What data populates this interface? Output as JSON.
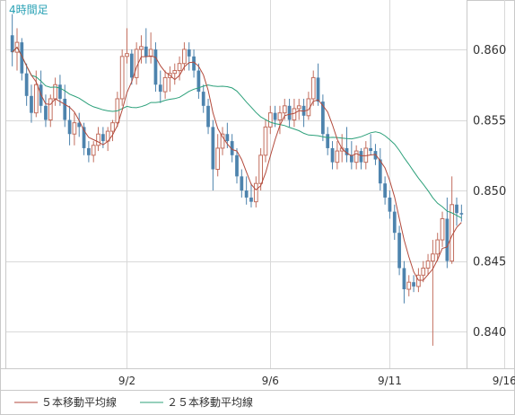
{
  "chart_data": {
    "type": "candlestick",
    "period_label": "4時間足",
    "y_ticks": [
      "0.860",
      "0.855",
      "0.850",
      "0.845",
      "0.840"
    ],
    "y_tick_values": [
      0.86,
      0.855,
      0.85,
      0.845,
      0.84
    ],
    "ylim": [
      0.8374,
      0.8635
    ],
    "x_ticks": [
      {
        "label": "9/2",
        "index": 24
      },
      {
        "label": "9/6",
        "index": 54
      },
      {
        "label": "9/11",
        "index": 79
      },
      {
        "label": "9/16",
        "index": 103
      }
    ],
    "grid": true,
    "colors": {
      "up_candle": "#c26e5e",
      "down_candle": "#4d83ad",
      "ma5": "#b34a3c",
      "ma25": "#2ca07a",
      "grid": "#d9d9d9",
      "period_label": "#26a0b4"
    },
    "legend": [
      {
        "label": "５本移動平均線",
        "color": "#b34a3c"
      },
      {
        "label": "２５本移動平均線",
        "color": "#2ca07a"
      }
    ],
    "ohlc": [
      [
        0.861,
        0.8625,
        0.8588,
        0.8598
      ],
      [
        0.8598,
        0.8615,
        0.8585,
        0.8605
      ],
      [
        0.8605,
        0.8608,
        0.8578,
        0.8583
      ],
      [
        0.8583,
        0.859,
        0.856,
        0.8567
      ],
      [
        0.8567,
        0.8575,
        0.8548,
        0.8555
      ],
      [
        0.8555,
        0.8585,
        0.8552,
        0.8575
      ],
      [
        0.8575,
        0.8585,
        0.8555,
        0.856
      ],
      [
        0.856,
        0.8568,
        0.8545,
        0.855
      ],
      [
        0.855,
        0.8568,
        0.8545,
        0.8565
      ],
      [
        0.8565,
        0.858,
        0.856,
        0.8575
      ],
      [
        0.8575,
        0.8582,
        0.856,
        0.8565
      ],
      [
        0.8565,
        0.8575,
        0.8545,
        0.855
      ],
      [
        0.855,
        0.856,
        0.8532,
        0.854
      ],
      [
        0.854,
        0.8555,
        0.8532,
        0.8548
      ],
      [
        0.8548,
        0.8555,
        0.8538,
        0.8545
      ],
      [
        0.8545,
        0.8548,
        0.8525,
        0.853
      ],
      [
        0.853,
        0.8535,
        0.852,
        0.8525
      ],
      [
        0.8525,
        0.8535,
        0.852,
        0.8532
      ],
      [
        0.8532,
        0.8545,
        0.8528,
        0.854
      ],
      [
        0.854,
        0.8545,
        0.853,
        0.8535
      ],
      [
        0.8535,
        0.8545,
        0.8528,
        0.8542
      ],
      [
        0.8542,
        0.855,
        0.8535,
        0.8548
      ],
      [
        0.8548,
        0.857,
        0.8545,
        0.8565
      ],
      [
        0.8565,
        0.86,
        0.856,
        0.8595
      ],
      [
        0.8595,
        0.8615,
        0.859,
        0.8597
      ],
      [
        0.8597,
        0.86,
        0.8575,
        0.858
      ],
      [
        0.858,
        0.8605,
        0.8575,
        0.86
      ],
      [
        0.86,
        0.861,
        0.859,
        0.8602
      ],
      [
        0.8602,
        0.8615,
        0.859,
        0.8595
      ],
      [
        0.8595,
        0.8612,
        0.859,
        0.86
      ],
      [
        0.86,
        0.8605,
        0.857,
        0.8575
      ],
      [
        0.8575,
        0.8585,
        0.8562,
        0.857
      ],
      [
        0.857,
        0.8585,
        0.8565,
        0.858
      ],
      [
        0.858,
        0.8588,
        0.857,
        0.8583
      ],
      [
        0.8583,
        0.859,
        0.8575,
        0.8585
      ],
      [
        0.8585,
        0.8595,
        0.8578,
        0.859
      ],
      [
        0.859,
        0.8605,
        0.8585,
        0.86
      ],
      [
        0.86,
        0.8605,
        0.8585,
        0.8595
      ],
      [
        0.8595,
        0.86,
        0.858,
        0.8585
      ],
      [
        0.8585,
        0.859,
        0.8565,
        0.857
      ],
      [
        0.857,
        0.8575,
        0.8555,
        0.856
      ],
      [
        0.856,
        0.8565,
        0.854,
        0.8545
      ],
      [
        0.8545,
        0.855,
        0.85,
        0.8515
      ],
      [
        0.8515,
        0.854,
        0.851,
        0.853
      ],
      [
        0.853,
        0.8545,
        0.8525,
        0.854
      ],
      [
        0.854,
        0.8548,
        0.853,
        0.8535
      ],
      [
        0.8535,
        0.854,
        0.852,
        0.8525
      ],
      [
        0.8525,
        0.853,
        0.8505,
        0.851
      ],
      [
        0.851,
        0.8515,
        0.8495,
        0.85
      ],
      [
        0.85,
        0.851,
        0.849,
        0.8495
      ],
      [
        0.8495,
        0.8505,
        0.8488,
        0.8492
      ],
      [
        0.8492,
        0.851,
        0.8488,
        0.8505
      ],
      [
        0.8505,
        0.853,
        0.85,
        0.8525
      ],
      [
        0.8525,
        0.855,
        0.852,
        0.8545
      ],
      [
        0.8545,
        0.856,
        0.854,
        0.8555
      ],
      [
        0.8555,
        0.856,
        0.8545,
        0.855
      ],
      [
        0.855,
        0.856,
        0.854,
        0.8555
      ],
      [
        0.8555,
        0.8565,
        0.855,
        0.856
      ],
      [
        0.856,
        0.8565,
        0.8545,
        0.855
      ],
      [
        0.855,
        0.8565,
        0.8545,
        0.8558
      ],
      [
        0.8558,
        0.8565,
        0.855,
        0.856
      ],
      [
        0.856,
        0.8565,
        0.8545,
        0.8553
      ],
      [
        0.8553,
        0.857,
        0.855,
        0.8565
      ],
      [
        0.8565,
        0.8585,
        0.856,
        0.858
      ],
      [
        0.858,
        0.859,
        0.856,
        0.8563
      ],
      [
        0.8563,
        0.8568,
        0.8535,
        0.854
      ],
      [
        0.854,
        0.8545,
        0.8525,
        0.853
      ],
      [
        0.853,
        0.8535,
        0.8515,
        0.852
      ],
      [
        0.852,
        0.8535,
        0.8515,
        0.8528
      ],
      [
        0.8528,
        0.854,
        0.852,
        0.853
      ],
      [
        0.853,
        0.8545,
        0.852,
        0.8525
      ],
      [
        0.8525,
        0.8535,
        0.8515,
        0.852
      ],
      [
        0.852,
        0.8532,
        0.8515,
        0.8528
      ],
      [
        0.8528,
        0.853,
        0.8515,
        0.852
      ],
      [
        0.852,
        0.8535,
        0.8515,
        0.853
      ],
      [
        0.853,
        0.854,
        0.8525,
        0.8528
      ],
      [
        0.8528,
        0.8533,
        0.8518,
        0.8522
      ],
      [
        0.8522,
        0.853,
        0.85,
        0.8505
      ],
      [
        0.8505,
        0.851,
        0.849,
        0.8495
      ],
      [
        0.8495,
        0.85,
        0.848,
        0.8485
      ],
      [
        0.8485,
        0.849,
        0.8465,
        0.847
      ],
      [
        0.847,
        0.8475,
        0.844,
        0.8445
      ],
      [
        0.8445,
        0.845,
        0.842,
        0.843
      ],
      [
        0.843,
        0.844,
        0.8425,
        0.8435
      ],
      [
        0.8435,
        0.844,
        0.8428,
        0.8432
      ],
      [
        0.8432,
        0.8445,
        0.8428,
        0.844
      ],
      [
        0.844,
        0.845,
        0.8435,
        0.8445
      ],
      [
        0.8445,
        0.8455,
        0.844,
        0.845
      ],
      [
        0.845,
        0.8465,
        0.839,
        0.8455
      ],
      [
        0.8455,
        0.847,
        0.845,
        0.8465
      ],
      [
        0.8465,
        0.8485,
        0.846,
        0.848
      ],
      [
        0.848,
        0.8495,
        0.8445,
        0.845
      ],
      [
        0.845,
        0.851,
        0.8448,
        0.849
      ],
      [
        0.849,
        0.8495,
        0.8475,
        0.8484
      ],
      [
        0.8484,
        0.849,
        0.8478,
        0.8483
      ]
    ]
  },
  "legend": {
    "ma5_label": "５本移動平均線",
    "ma25_label": "２５本移動平均線"
  }
}
